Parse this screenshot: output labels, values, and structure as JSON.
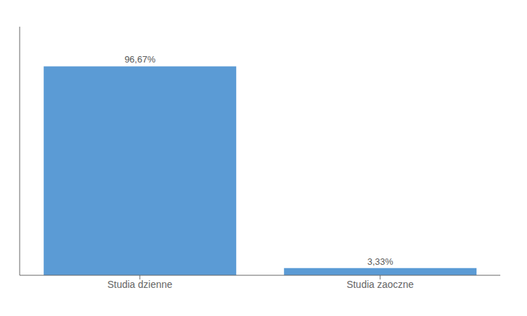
{
  "chart_data": {
    "type": "bar",
    "categories": [
      "Studia dzienne",
      "Studia zaoczne"
    ],
    "values": [
      96.67,
      3.33
    ],
    "value_labels": [
      "96,67%",
      "3,33%"
    ],
    "data_labels": true,
    "color": "#5b9bd5",
    "ylim": [
      0,
      115
    ],
    "tick_labels": "x",
    "grid": false
  }
}
